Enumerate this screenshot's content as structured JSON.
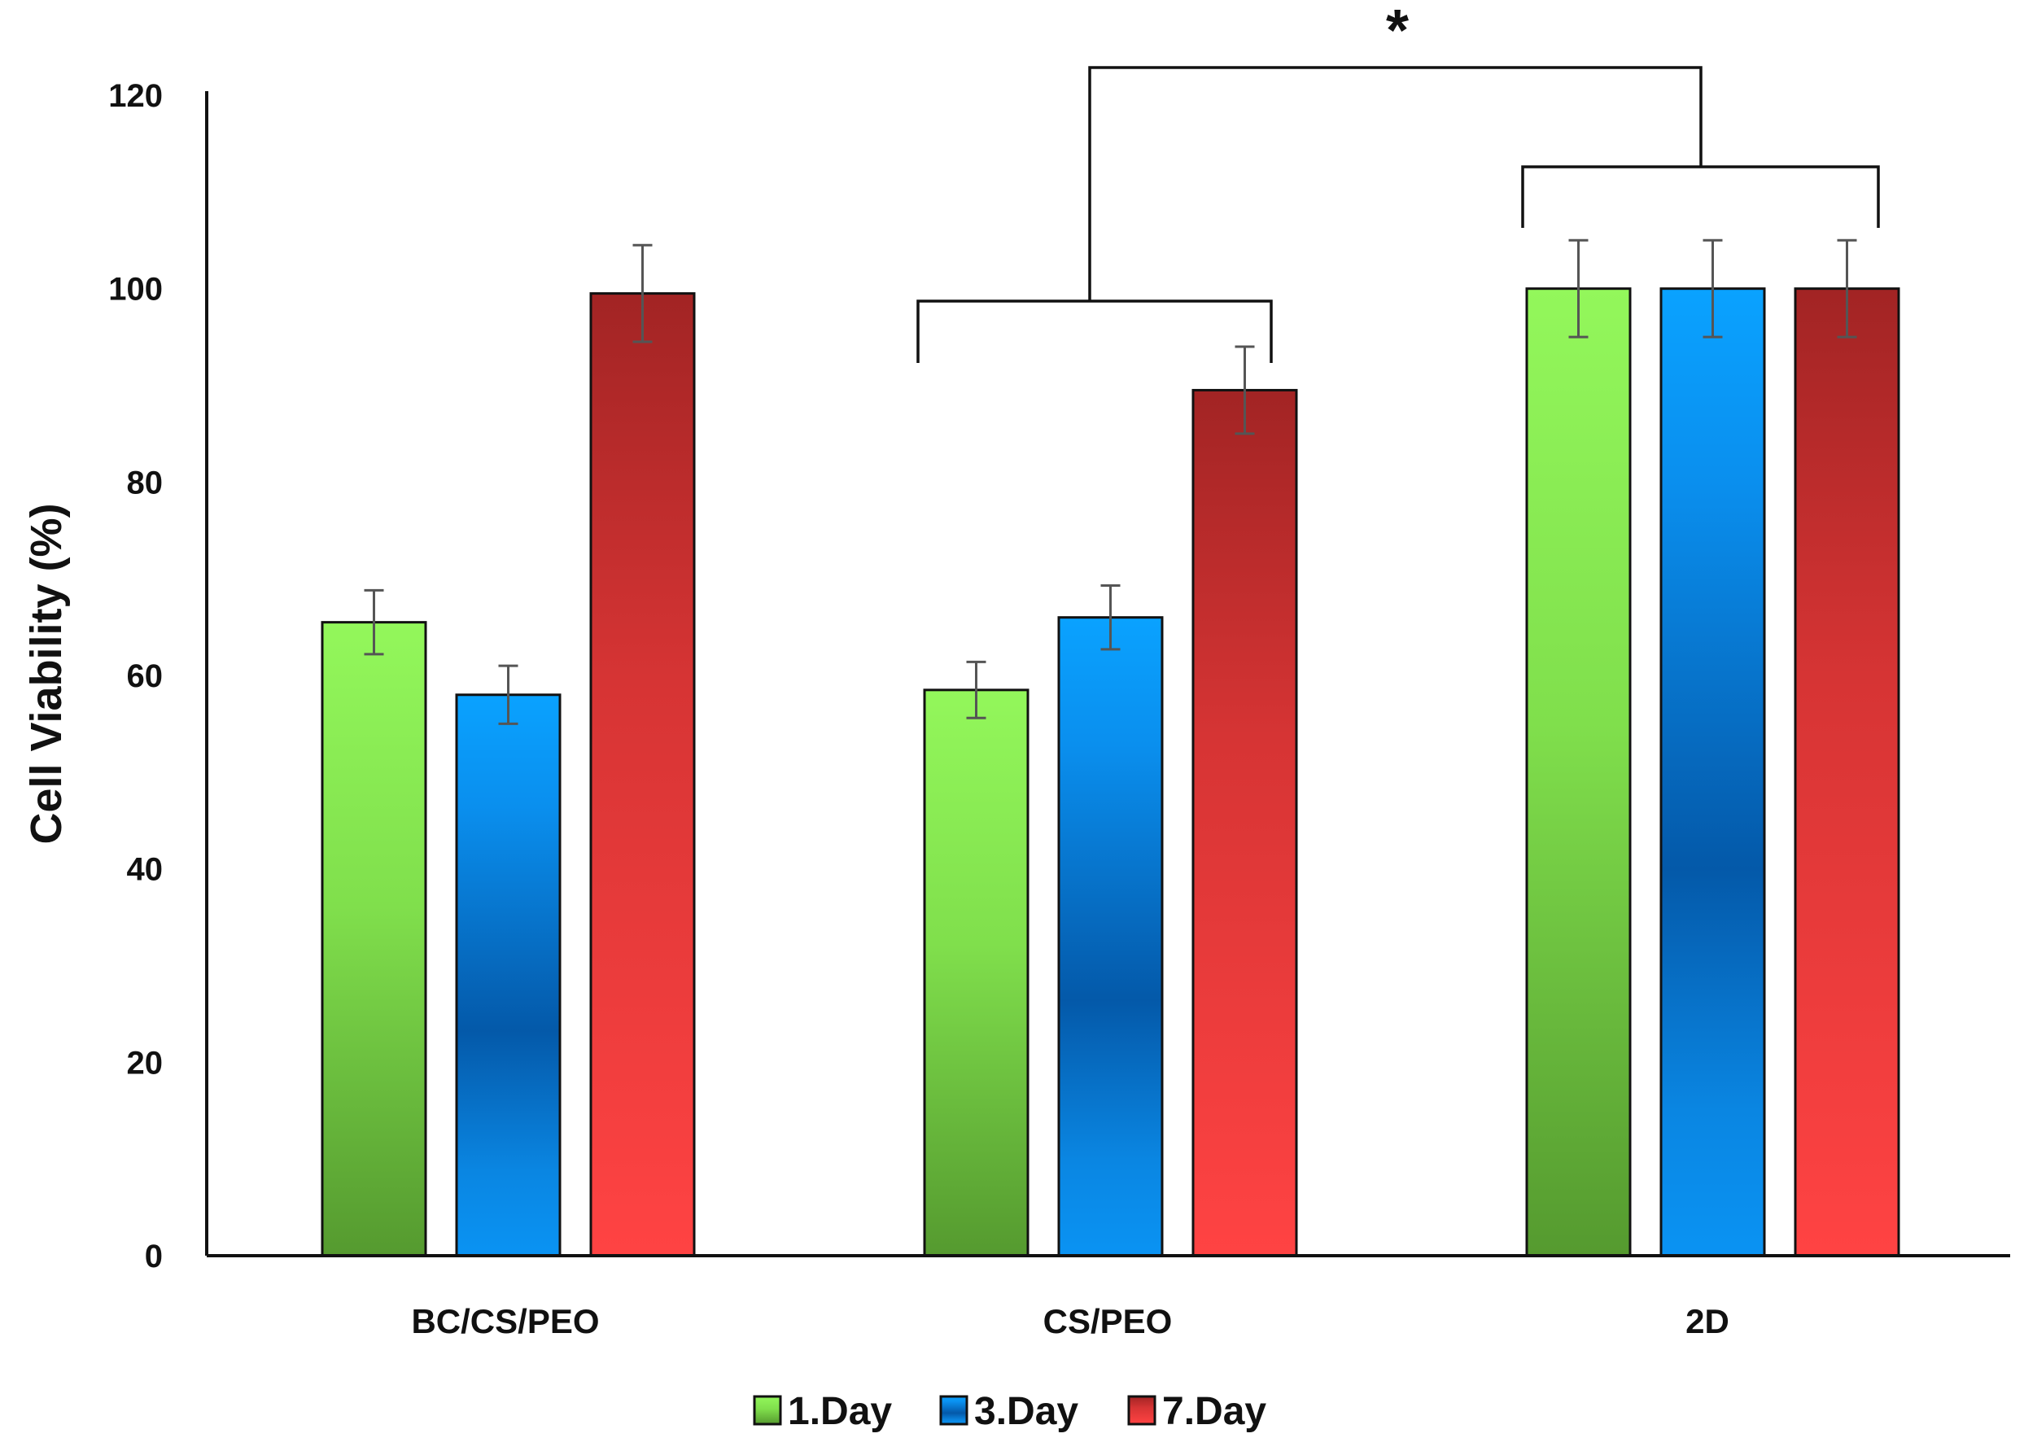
{
  "chart_data": {
    "type": "bar",
    "title": "",
    "xlabel": "",
    "ylabel": "Cell Viability (%)",
    "ylim": [
      0,
      120
    ],
    "yticks": [
      0,
      20,
      40,
      60,
      80,
      100,
      120
    ],
    "categories": [
      "BC/CS/PEO",
      "CS/PEO",
      "2D"
    ],
    "series": [
      {
        "name": "1.Day",
        "values": [
          65.5,
          58.5,
          100
        ],
        "errors": [
          3.3,
          2.9,
          5
        ],
        "color_top": "#92f55a",
        "color_bottom": "#55992e",
        "style": "green"
      },
      {
        "name": "3.Day",
        "values": [
          58,
          66,
          100
        ],
        "errors": [
          3,
          3.3,
          5
        ],
        "color_top": "#0aa0ff",
        "color_bottom": "#0a8ff0",
        "color_mid": "#0458a8",
        "style": "blue"
      },
      {
        "name": "7.Day",
        "values": [
          99.5,
          89.5,
          100
        ],
        "errors": [
          5,
          4.5,
          5
        ],
        "color_top": "#a32424",
        "color_bottom": "#ff4242",
        "style": "red"
      }
    ],
    "legend_position": "bottom-center",
    "grid": false,
    "significance": {
      "label": "*",
      "comparison": [
        "CS/PEO",
        "2D"
      ]
    }
  }
}
